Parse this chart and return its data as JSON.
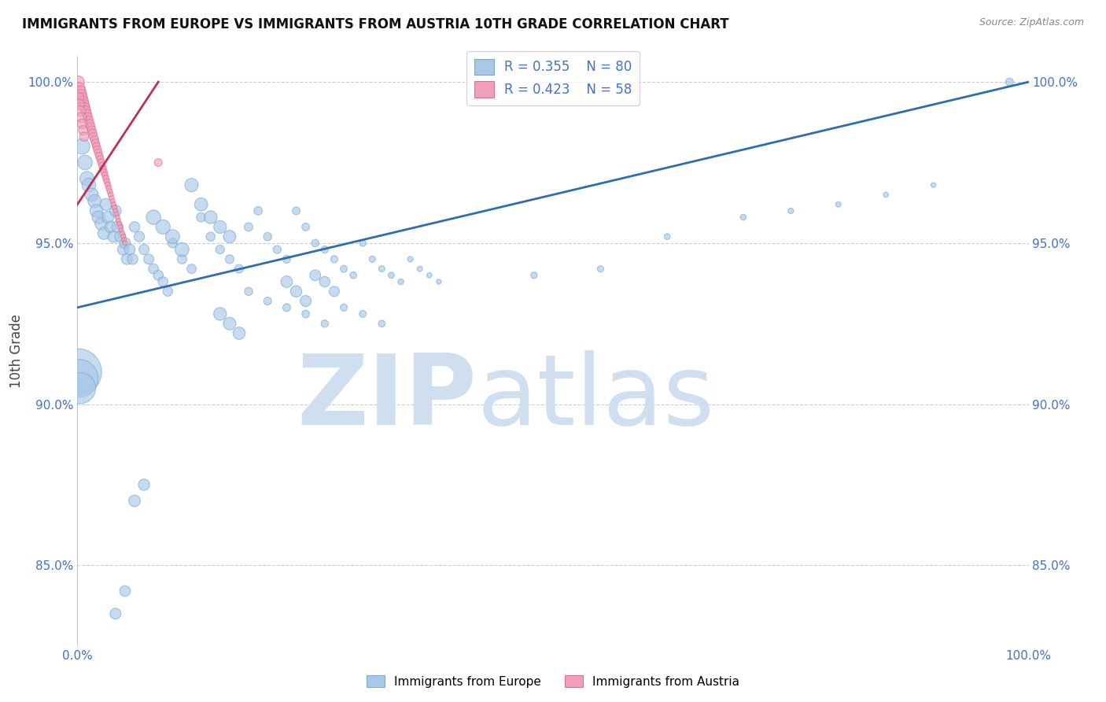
{
  "title": "IMMIGRANTS FROM EUROPE VS IMMIGRANTS FROM AUSTRIA 10TH GRADE CORRELATION CHART",
  "source": "Source: ZipAtlas.com",
  "ylabel": "10th Grade",
  "xlim": [
    0.0,
    1.0
  ],
  "ylim": [
    0.825,
    1.008
  ],
  "yticks": [
    0.85,
    0.9,
    0.95,
    1.0
  ],
  "ytick_labels": [
    "85.0%",
    "90.0%",
    "95.0%",
    "100.0%"
  ],
  "xtick_labels": [
    "0.0%",
    "100.0%"
  ],
  "xtick_positions": [
    0.0,
    1.0
  ],
  "legend_blue_r": "R = 0.355",
  "legend_blue_n": "N = 80",
  "legend_pink_r": "R = 0.423",
  "legend_pink_n": "N = 58",
  "blue_color": "#A8C8E8",
  "pink_color": "#F0A0B8",
  "blue_edge_color": "#7AAAD0",
  "pink_edge_color": "#D87090",
  "blue_line_color": "#2E6DAE",
  "pink_line_color": "#C03050",
  "blue_scatter_x": [
    0.005,
    0.008,
    0.01,
    0.012,
    0.015,
    0.018,
    0.02,
    0.022,
    0.025,
    0.028,
    0.03,
    0.032,
    0.035,
    0.038,
    0.04,
    0.042,
    0.045,
    0.048,
    0.05,
    0.052,
    0.055,
    0.058,
    0.06,
    0.065,
    0.07,
    0.075,
    0.08,
    0.085,
    0.09,
    0.095,
    0.1,
    0.11,
    0.12,
    0.13,
    0.14,
    0.15,
    0.16,
    0.17,
    0.18,
    0.19,
    0.2,
    0.21,
    0.22,
    0.23,
    0.24,
    0.25,
    0.26,
    0.27,
    0.28,
    0.29,
    0.3,
    0.31,
    0.32,
    0.33,
    0.34,
    0.35,
    0.36,
    0.37,
    0.38,
    0.18,
    0.2,
    0.22,
    0.24,
    0.26,
    0.28,
    0.3,
    0.32,
    0.48,
    0.55,
    0.62,
    0.7,
    0.75,
    0.8,
    0.85,
    0.9,
    0.98,
    0.001,
    0.002,
    0.003
  ],
  "blue_scatter_y": [
    0.98,
    0.975,
    0.97,
    0.968,
    0.965,
    0.963,
    0.96,
    0.958,
    0.956,
    0.953,
    0.962,
    0.958,
    0.955,
    0.952,
    0.96,
    0.955,
    0.952,
    0.948,
    0.95,
    0.945,
    0.948,
    0.945,
    0.955,
    0.952,
    0.948,
    0.945,
    0.942,
    0.94,
    0.938,
    0.935,
    0.95,
    0.945,
    0.942,
    0.958,
    0.952,
    0.948,
    0.945,
    0.942,
    0.955,
    0.96,
    0.952,
    0.948,
    0.945,
    0.96,
    0.955,
    0.95,
    0.948,
    0.945,
    0.942,
    0.94,
    0.95,
    0.945,
    0.942,
    0.94,
    0.938,
    0.945,
    0.942,
    0.94,
    0.938,
    0.935,
    0.932,
    0.93,
    0.928,
    0.925,
    0.93,
    0.928,
    0.925,
    0.94,
    0.942,
    0.952,
    0.958,
    0.96,
    0.962,
    0.965,
    0.968,
    1.0,
    0.91,
    0.908,
    0.905
  ],
  "blue_scatter_size": [
    200,
    180,
    170,
    160,
    150,
    145,
    140,
    135,
    130,
    125,
    120,
    118,
    115,
    112,
    110,
    108,
    105,
    102,
    100,
    98,
    96,
    94,
    92,
    90,
    88,
    86,
    84,
    82,
    80,
    78,
    76,
    74,
    72,
    70,
    68,
    66,
    64,
    62,
    60,
    58,
    56,
    54,
    52,
    50,
    48,
    46,
    44,
    42,
    40,
    38,
    36,
    34,
    32,
    30,
    28,
    26,
    24,
    22,
    20,
    55,
    52,
    50,
    48,
    45,
    42,
    40,
    38,
    35,
    33,
    30,
    28,
    26,
    24,
    22,
    20,
    50,
    1800,
    1200,
    800
  ],
  "blue_scatter_x_extra": [
    0.12,
    0.13,
    0.14,
    0.15,
    0.16,
    0.08,
    0.09,
    0.1,
    0.11,
    0.22,
    0.23,
    0.24,
    0.25,
    0.26,
    0.27,
    0.15,
    0.16,
    0.17,
    0.06,
    0.07,
    0.04,
    0.05
  ],
  "blue_scatter_y_extra": [
    0.968,
    0.962,
    0.958,
    0.955,
    0.952,
    0.958,
    0.955,
    0.952,
    0.948,
    0.938,
    0.935,
    0.932,
    0.94,
    0.938,
    0.935,
    0.928,
    0.925,
    0.922,
    0.87,
    0.875,
    0.835,
    0.842
  ],
  "blue_scatter_size_extra": [
    60,
    58,
    56,
    54,
    52,
    70,
    68,
    66,
    64,
    45,
    43,
    41,
    39,
    37,
    35,
    55,
    53,
    51,
    45,
    43,
    40,
    38
  ],
  "pink_scatter_x": [
    0.001,
    0.002,
    0.003,
    0.004,
    0.005,
    0.006,
    0.007,
    0.008,
    0.009,
    0.01,
    0.011,
    0.012,
    0.013,
    0.014,
    0.015,
    0.016,
    0.017,
    0.018,
    0.019,
    0.02,
    0.021,
    0.022,
    0.023,
    0.024,
    0.025,
    0.026,
    0.027,
    0.028,
    0.029,
    0.03,
    0.031,
    0.032,
    0.033,
    0.034,
    0.035,
    0.036,
    0.037,
    0.038,
    0.039,
    0.04,
    0.041,
    0.042,
    0.043,
    0.044,
    0.045,
    0.046,
    0.047,
    0.048,
    0.049,
    0.05,
    0.001,
    0.002,
    0.003,
    0.004,
    0.005,
    0.006,
    0.007,
    0.085
  ],
  "pink_scatter_y": [
    1.0,
    0.998,
    0.997,
    0.996,
    0.995,
    0.994,
    0.993,
    0.992,
    0.991,
    0.99,
    0.989,
    0.988,
    0.987,
    0.986,
    0.985,
    0.984,
    0.983,
    0.982,
    0.981,
    0.98,
    0.979,
    0.978,
    0.977,
    0.976,
    0.975,
    0.974,
    0.973,
    0.972,
    0.971,
    0.97,
    0.969,
    0.968,
    0.967,
    0.966,
    0.965,
    0.964,
    0.963,
    0.962,
    0.961,
    0.96,
    0.959,
    0.958,
    0.957,
    0.956,
    0.955,
    0.954,
    0.953,
    0.952,
    0.951,
    0.95,
    0.995,
    0.993,
    0.991,
    0.989,
    0.987,
    0.985,
    0.983,
    0.975
  ],
  "pink_scatter_size": [
    120,
    115,
    110,
    105,
    100,
    95,
    90,
    85,
    80,
    75,
    72,
    70,
    68,
    66,
    64,
    62,
    60,
    58,
    56,
    54,
    52,
    50,
    48,
    46,
    44,
    42,
    40,
    38,
    36,
    34,
    32,
    30,
    28,
    26,
    24,
    22,
    20,
    20,
    20,
    20,
    20,
    20,
    20,
    20,
    20,
    20,
    20,
    20,
    20,
    20,
    100,
    95,
    90,
    85,
    80,
    75,
    70,
    50
  ],
  "blue_line_x": [
    0.0,
    1.0
  ],
  "blue_line_y": [
    0.93,
    1.0
  ],
  "pink_line_x": [
    0.0,
    0.085
  ],
  "pink_line_y": [
    0.962,
    1.0
  ],
  "watermark_zip": "ZIP",
  "watermark_atlas": "atlas",
  "watermark_color": "#D0DFF0",
  "background_color": "#FFFFFF",
  "grid_color": "#CCCCCC",
  "tick_color": "#4472C4",
  "ylabel_color": "#444444",
  "title_color": "#111111",
  "source_color": "#888888"
}
